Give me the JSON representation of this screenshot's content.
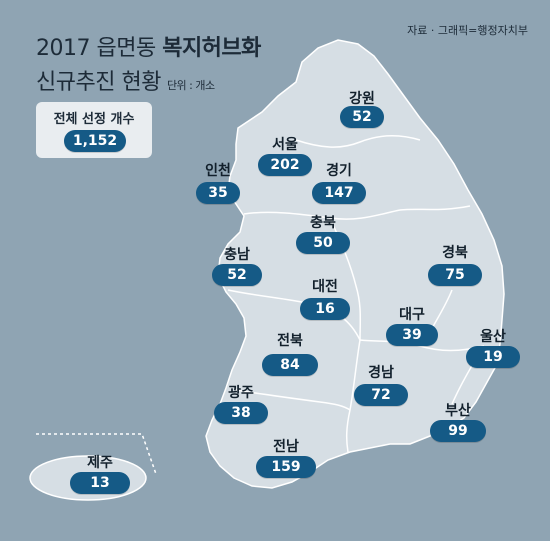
{
  "title_prefix": "2017 읍면동 ",
  "title_bold": "복지허브화",
  "title_line2": "신규추진 현황",
  "unit": "단위 : 개소",
  "source": "자료 · 그래픽=행정자치부",
  "total": {
    "label": "전체 선정 개수",
    "value": "1,152"
  },
  "regions": [
    {
      "id": "gangwon",
      "name": "강원",
      "value": 52
    },
    {
      "id": "seoul",
      "name": "서울",
      "value": 202
    },
    {
      "id": "incheon",
      "name": "인천",
      "value": 35
    },
    {
      "id": "gyeonggi",
      "name": "경기",
      "value": 147
    },
    {
      "id": "chungbuk",
      "name": "충북",
      "value": 50
    },
    {
      "id": "chungnam",
      "name": "충남",
      "value": 52
    },
    {
      "id": "gyeongbuk",
      "name": "경북",
      "value": 75
    },
    {
      "id": "daejeon",
      "name": "대전",
      "value": 16
    },
    {
      "id": "daegu",
      "name": "대구",
      "value": 39
    },
    {
      "id": "ulsan",
      "name": "울산",
      "value": 19
    },
    {
      "id": "jeonbuk",
      "name": "전북",
      "value": 84
    },
    {
      "id": "gyeongnam",
      "name": "경남",
      "value": 72
    },
    {
      "id": "gwangju",
      "name": "광주",
      "value": 38
    },
    {
      "id": "busan",
      "name": "부산",
      "value": 99
    },
    {
      "id": "jeonnam",
      "name": "전남",
      "value": 159
    },
    {
      "id": "jeju",
      "name": "제주",
      "value": 13
    }
  ],
  "colors": {
    "background": "#8fa4b3",
    "land": "#d6dee4",
    "border": "#ffffff",
    "pill": "#155a86",
    "text": "#12202c"
  }
}
